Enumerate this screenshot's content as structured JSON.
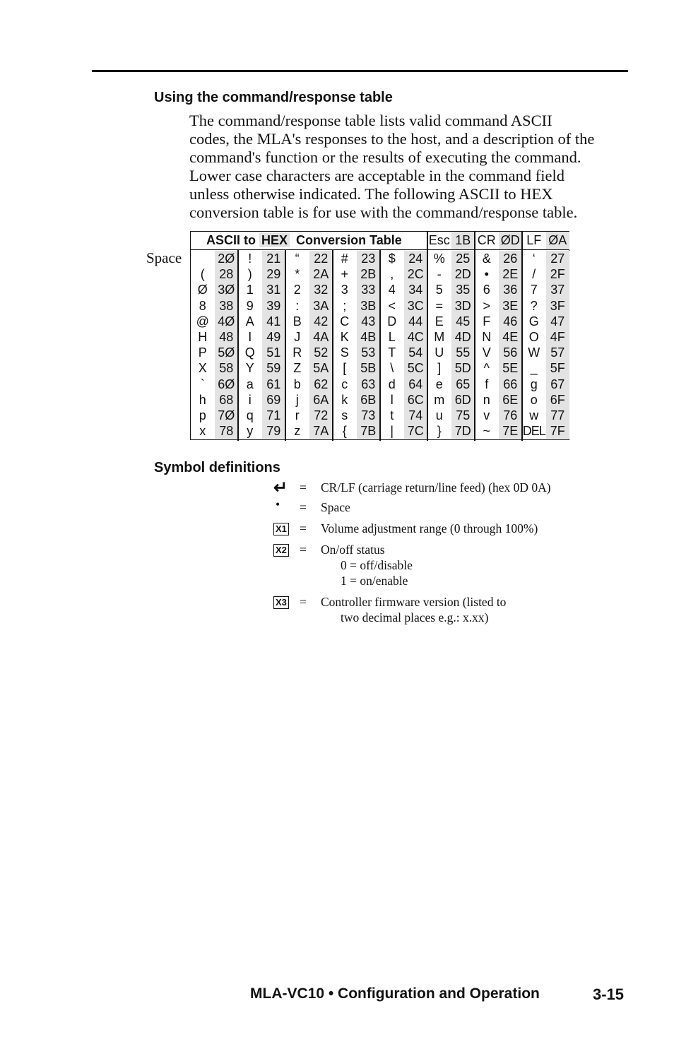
{
  "section1": {
    "heading": "Using the command/response table",
    "paragraph_lines": [
      "The command/response table lists valid command ASCII",
      "codes, the MLA's responses to the host, and a description of the",
      "command's function or the results of executing the command.",
      "Lower case characters are acceptable in the command field",
      "unless otherwise indicated.  The following ASCII to HEX",
      "conversion table is for use with the command/response table."
    ]
  },
  "ascii_table": {
    "space_label": "Space",
    "title_part1": "ASCII to",
    "title_hex": "HEX",
    "title_part2": "Conversion Table",
    "header_pairs": [
      [
        "Esc",
        "1B"
      ],
      [
        "CR",
        "ØD"
      ],
      [
        "LF",
        "ØA"
      ]
    ],
    "rows": [
      [
        [
          "",
          "2Ø"
        ],
        [
          "!",
          "21"
        ],
        [
          "“",
          "22"
        ],
        [
          "#",
          "23"
        ],
        [
          "$",
          "24"
        ],
        [
          "%",
          "25"
        ],
        [
          "&",
          "26"
        ],
        [
          "‘",
          "27"
        ]
      ],
      [
        [
          "(",
          "28"
        ],
        [
          ")",
          "29"
        ],
        [
          "*",
          "2A"
        ],
        [
          "+",
          "2B"
        ],
        [
          ",",
          "2C"
        ],
        [
          "-",
          "2D"
        ],
        [
          "•",
          "2E"
        ],
        [
          "/",
          "2F"
        ]
      ],
      [
        [
          "Ø",
          "3Ø"
        ],
        [
          "1",
          "31"
        ],
        [
          "2",
          "32"
        ],
        [
          "3",
          "33"
        ],
        [
          "4",
          "34"
        ],
        [
          "5",
          "35"
        ],
        [
          "6",
          "36"
        ],
        [
          "7",
          "37"
        ]
      ],
      [
        [
          "8",
          "38"
        ],
        [
          "9",
          "39"
        ],
        [
          ":",
          "3A"
        ],
        [
          ";",
          "3B"
        ],
        [
          "<",
          "3C"
        ],
        [
          "=",
          "3D"
        ],
        [
          ">",
          "3E"
        ],
        [
          "?",
          "3F"
        ]
      ],
      [
        [
          "@",
          "4Ø"
        ],
        [
          "A",
          "41"
        ],
        [
          "B",
          "42"
        ],
        [
          "C",
          "43"
        ],
        [
          "D",
          "44"
        ],
        [
          "E",
          "45"
        ],
        [
          "F",
          "46"
        ],
        [
          "G",
          "47"
        ]
      ],
      [
        [
          "H",
          "48"
        ],
        [
          "I",
          "49"
        ],
        [
          "J",
          "4A"
        ],
        [
          "K",
          "4B"
        ],
        [
          "L",
          "4C"
        ],
        [
          "M",
          "4D"
        ],
        [
          "N",
          "4E"
        ],
        [
          "O",
          "4F"
        ]
      ],
      [
        [
          "P",
          "5Ø"
        ],
        [
          "Q",
          "51"
        ],
        [
          "R",
          "52"
        ],
        [
          "S",
          "53"
        ],
        [
          "T",
          "54"
        ],
        [
          "U",
          "55"
        ],
        [
          "V",
          "56"
        ],
        [
          "W",
          "57"
        ]
      ],
      [
        [
          "X",
          "58"
        ],
        [
          "Y",
          "59"
        ],
        [
          "Z",
          "5A"
        ],
        [
          "[",
          "5B"
        ],
        [
          "\\",
          "5C"
        ],
        [
          "]",
          "5D"
        ],
        [
          "^",
          "5E"
        ],
        [
          "_",
          "5F"
        ]
      ],
      [
        [
          "`",
          "6Ø"
        ],
        [
          "a",
          "61"
        ],
        [
          "b",
          "62"
        ],
        [
          "c",
          "63"
        ],
        [
          "d",
          "64"
        ],
        [
          "e",
          "65"
        ],
        [
          "f",
          "66"
        ],
        [
          "g",
          "67"
        ]
      ],
      [
        [
          "h",
          "68"
        ],
        [
          "i",
          "69"
        ],
        [
          "j",
          "6A"
        ],
        [
          "k",
          "6B"
        ],
        [
          "l",
          "6C"
        ],
        [
          "m",
          "6D"
        ],
        [
          "n",
          "6E"
        ],
        [
          "o",
          "6F"
        ]
      ],
      [
        [
          "p",
          "7Ø"
        ],
        [
          "q",
          "71"
        ],
        [
          "r",
          "72"
        ],
        [
          "s",
          "73"
        ],
        [
          "t",
          "74"
        ],
        [
          "u",
          "75"
        ],
        [
          "v",
          "76"
        ],
        [
          "w",
          "77"
        ]
      ],
      [
        [
          "x",
          "78"
        ],
        [
          "y",
          "79"
        ],
        [
          "z",
          "7A"
        ],
        [
          "{",
          "7B"
        ],
        [
          "|",
          "7C"
        ],
        [
          "}",
          "7D"
        ],
        [
          "~",
          "7E"
        ],
        [
          "DEL",
          "7F"
        ]
      ]
    ]
  },
  "section2": {
    "heading": "Symbol definitions",
    "symbols": [
      {
        "icon": "return-arrow-icon",
        "symbol": "↵",
        "eq": "=",
        "text": "CR/LF (carriage return/line feed) (hex 0D 0A)"
      },
      {
        "icon": "bullet-icon",
        "symbol": "•",
        "eq": "=",
        "text": "Space"
      },
      {
        "icon": "x1-box",
        "symbol": "X1",
        "eq": "=",
        "text": "Volume adjustment range (0 through 100%)"
      },
      {
        "icon": "x2-box",
        "symbol": "X2",
        "eq": "=",
        "text": "On/off status",
        "sub": [
          "0 = off/disable",
          "1 = on/enable"
        ]
      },
      {
        "icon": "x3-box",
        "symbol": "X3",
        "eq": "=",
        "text": "Controller firmware version (listed to",
        "sub": [
          "two decimal places e.g.: x.xx)"
        ]
      }
    ]
  },
  "footer": {
    "title": "MLA-VC10 • Configuration and Operation",
    "page": "3-15"
  }
}
